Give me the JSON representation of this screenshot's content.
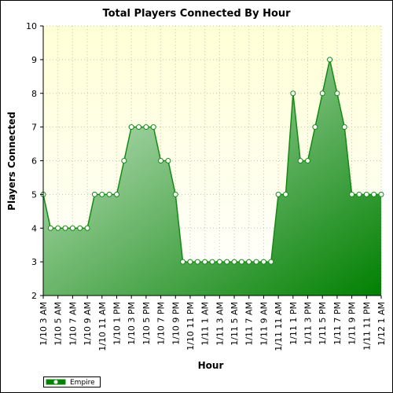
{
  "chart_data": {
    "type": "area",
    "title": "Total Players Connected By Hour",
    "xlabel": "Hour",
    "ylabel": "Players Connected",
    "ylim": [
      2,
      10
    ],
    "yticks": [
      2,
      3,
      4,
      5,
      6,
      7,
      8,
      9,
      10
    ],
    "grid": true,
    "legend_position": "bottom-left",
    "x_tick_labels": [
      "1/10 3 AM",
      "1/10 5 AM",
      "1/10 7 AM",
      "1/10 9 AM",
      "1/10 11 AM",
      "1/10 1 PM",
      "1/10 3 PM",
      "1/10 5 PM",
      "1/10 7 PM",
      "1/10 9 PM",
      "1/10 11 PM",
      "1/11 1 AM",
      "1/11 3 AM",
      "1/11 5 AM",
      "1/11 7 AM",
      "1/11 9 AM",
      "1/11 11 AM",
      "1/11 1 PM",
      "1/11 3 PM",
      "1/11 5 PM",
      "1/11 7 PM",
      "1/11 9 PM",
      "1/11 11 PM",
      "1/12 1 AM"
    ],
    "colors": {
      "line": "#138a13",
      "fill_light": "#d3ebd3",
      "fill_dark": "#018001",
      "plot_bg_top": "#ffffd6",
      "plot_bg_bottom": "#ffffff",
      "grid": "#c8c8a0"
    },
    "series": [
      {
        "name": "Empire",
        "values": [
          5,
          4,
          4,
          4,
          4,
          4,
          4,
          5,
          5,
          5,
          5,
          6,
          7,
          7,
          7,
          7,
          6,
          6,
          5,
          3,
          3,
          3,
          3,
          3,
          3,
          3,
          3,
          3,
          3,
          3,
          3,
          3,
          5,
          5,
          8,
          6,
          6,
          7,
          8,
          9,
          8,
          7,
          5,
          5,
          5,
          5,
          5
        ]
      }
    ]
  }
}
